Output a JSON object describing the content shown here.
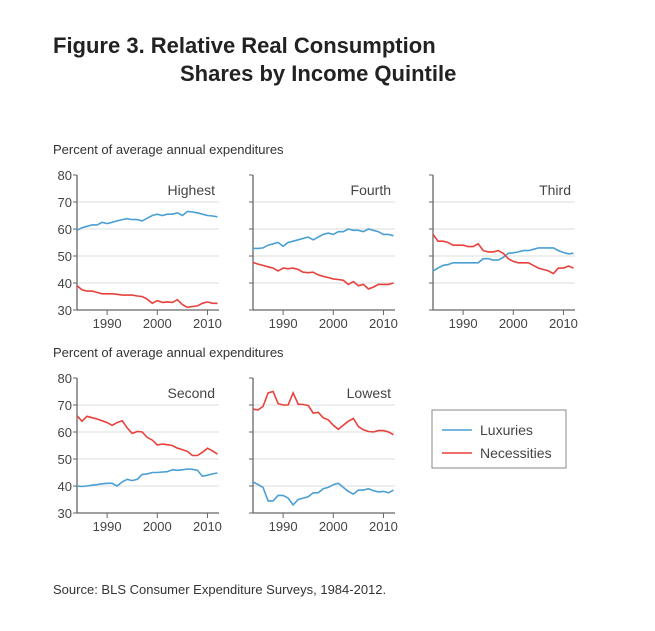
{
  "title_line1": "Figure 3.  Relative Real Consumption",
  "title_line2": "Shares by Income Quintile",
  "source": "Source:  BLS Consumer Expenditure Surveys, 1984-2012.",
  "colors": {
    "Luxuries": "#4a9fd4",
    "Necessities": "#e8413c",
    "grid": "#dddddd",
    "axis": "#666666"
  },
  "chart_data": {
    "type": "line",
    "ylabel": "Percent of average annual expenditures",
    "ylim": [
      30,
      80
    ],
    "yticks": [
      30,
      40,
      50,
      60,
      70,
      80
    ],
    "xticks": [
      1990,
      2000,
      2010
    ],
    "x": [
      1984,
      1985,
      1986,
      1987,
      1988,
      1989,
      1990,
      1991,
      1992,
      1993,
      1994,
      1995,
      1996,
      1997,
      1998,
      1999,
      2000,
      2001,
      2002,
      2003,
      2004,
      2005,
      2006,
      2007,
      2008,
      2009,
      2010,
      2011,
      2012
    ],
    "legend": {
      "placement": "right",
      "entries": [
        "Luxuries",
        "Necessities"
      ]
    },
    "grid": true,
    "panels": [
      {
        "name": "Highest",
        "Luxuries": [
          59.5,
          60.5,
          61,
          61.5,
          61.5,
          62.5,
          62,
          62.5,
          63,
          63.5,
          63.8,
          63.5,
          63.5,
          63,
          64,
          65,
          65.5,
          65,
          65.5,
          65.5,
          66,
          65,
          66.5,
          66.3,
          66,
          65.5,
          65,
          64.8,
          64.5
        ],
        "Necessities": [
          39,
          37.5,
          37,
          37,
          36.5,
          36,
          36,
          36,
          35.8,
          35.5,
          35.5,
          35.5,
          35.2,
          35,
          34,
          32.5,
          33.5,
          32.8,
          33,
          32.8,
          33.8,
          32,
          31,
          31.3,
          31.5,
          32.5,
          33,
          32.5,
          32.5
        ]
      },
      {
        "name": "Fourth",
        "Luxuries": [
          52.8,
          52.8,
          53,
          54,
          54.5,
          55,
          53.6,
          55,
          55.5,
          56,
          56.5,
          57,
          56,
          57,
          58,
          58.5,
          58,
          59,
          59,
          60,
          59.5,
          59.5,
          59,
          60,
          59.5,
          59,
          58,
          58,
          57.5
        ],
        "Necessities": [
          47.6,
          47,
          46.5,
          46,
          45.5,
          44.5,
          45.5,
          45.3,
          45.5,
          45,
          44,
          43.8,
          44,
          43,
          42.5,
          42,
          41.5,
          41.3,
          41,
          39.5,
          40.5,
          39,
          39.5,
          37.8,
          38.5,
          39.5,
          39.5,
          39.5,
          40
        ]
      },
      {
        "name": "Third",
        "Luxuries": [
          44.5,
          45.5,
          46.5,
          46.8,
          47.5,
          47.5,
          47.5,
          47.5,
          47.5,
          47.5,
          49,
          49,
          48.5,
          48.5,
          49.5,
          51,
          51.2,
          51.5,
          52,
          52,
          52.5,
          53,
          53,
          53,
          53,
          52,
          51.3,
          50.8,
          51
        ],
        "Necessities": [
          58,
          55.5,
          55.5,
          55,
          54,
          54,
          54,
          53.5,
          53.5,
          54.5,
          52,
          51.5,
          51.5,
          52,
          51,
          49,
          48,
          47.5,
          47.5,
          47.5,
          46.5,
          45.5,
          45,
          44.5,
          43.5,
          45.5,
          45.5,
          46.3,
          45.5
        ]
      },
      {
        "name": "Second",
        "Luxuries": [
          40,
          39.8,
          40,
          40.3,
          40.5,
          40.8,
          41,
          41,
          40,
          41.5,
          42.5,
          42,
          42.5,
          44.3,
          44.5,
          45,
          45,
          45.2,
          45.3,
          46,
          45.8,
          46,
          46.3,
          46.2,
          45.8,
          43.6,
          44,
          44.5,
          44.8
        ],
        "Necessities": [
          66,
          64,
          65.8,
          65.3,
          64.8,
          64.2,
          63.5,
          62.5,
          63.5,
          64.2,
          61.5,
          59.5,
          60.2,
          60,
          58,
          57,
          55.2,
          55.5,
          55.3,
          55,
          54,
          53.5,
          52.8,
          51.3,
          51.3,
          52.5,
          54,
          53,
          51.8
        ]
      },
      {
        "name": "Lowest",
        "Luxuries": [
          41.5,
          40.5,
          39.5,
          34.5,
          34.5,
          36.5,
          36.5,
          35.5,
          33,
          35,
          35.5,
          36,
          37.5,
          37.5,
          39,
          39.5,
          40.5,
          41,
          39.5,
          38,
          37,
          38.5,
          38.5,
          39,
          38.3,
          37.8,
          38,
          37.5,
          38.5
        ],
        "Necessities": [
          68.5,
          68.2,
          69.5,
          74.5,
          75,
          70.5,
          70,
          70,
          74.5,
          70.3,
          70.2,
          69.8,
          67,
          67.3,
          65.3,
          64.5,
          62.5,
          61,
          62.5,
          64,
          65,
          62,
          60.8,
          60.2,
          60,
          60.5,
          60.5,
          60,
          59
        ]
      }
    ]
  }
}
